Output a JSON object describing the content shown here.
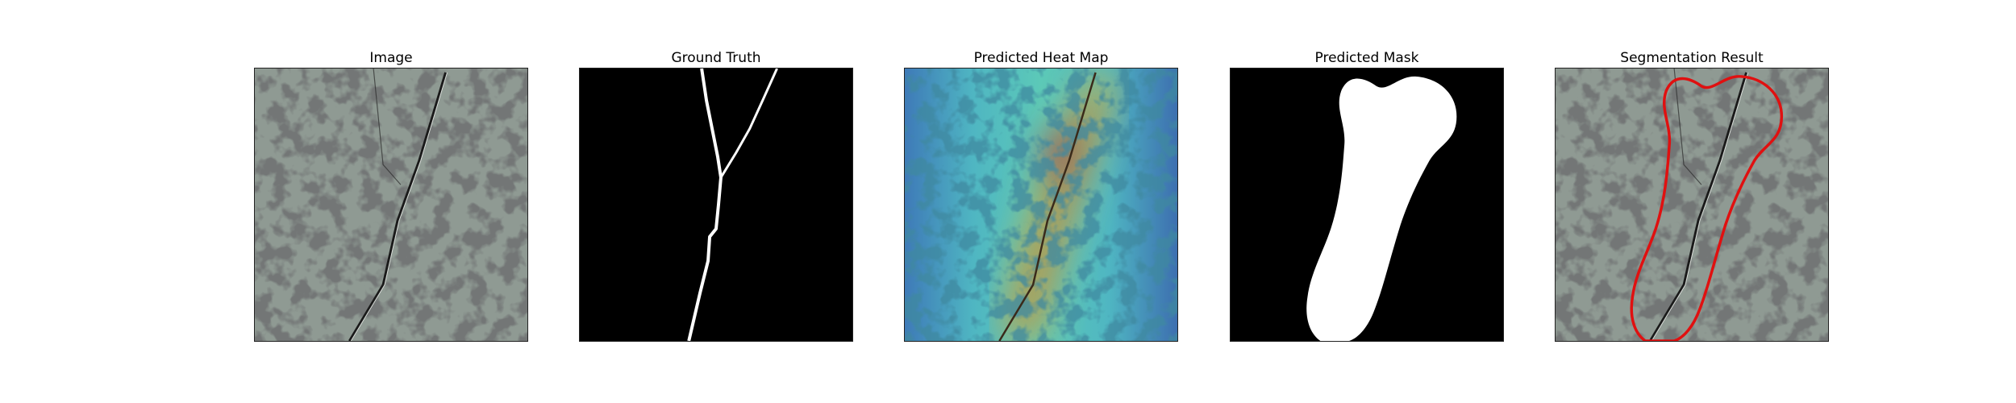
{
  "figure": {
    "panels": [
      {
        "title": "Image",
        "content": "crack-texture-image"
      },
      {
        "title": "Ground Truth",
        "content": "binary-crack-mask"
      },
      {
        "title": "Predicted Heat Map",
        "content": "heatmap-overlay"
      },
      {
        "title": "Predicted Mask",
        "content": "predicted-binary-mask"
      },
      {
        "title": "Segmentation Result",
        "content": "texture-with-red-contour"
      }
    ],
    "colors": {
      "background": "#ffffff",
      "texture_base": "#8f9a93",
      "texture_spots": "#2d302e",
      "mask_foreground": "#ffffff",
      "mask_background": "#000000",
      "contour": "#e01010"
    }
  }
}
